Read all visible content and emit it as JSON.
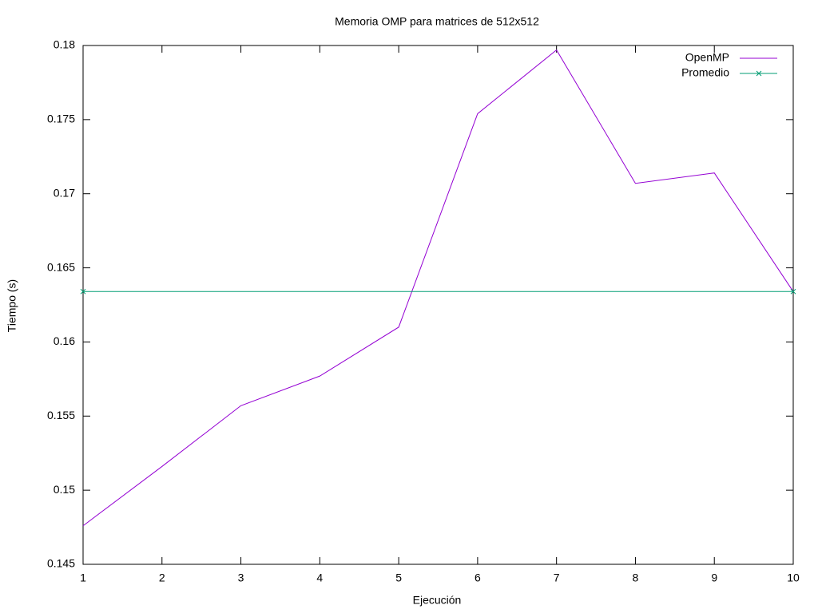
{
  "chart_data": {
    "type": "line",
    "title": "Memoria OMP para matrices de 512x512",
    "xlabel": "Ejecución",
    "ylabel": "Tiempo (s)",
    "xlim": [
      1,
      10
    ],
    "xticks": [
      1,
      2,
      3,
      4,
      5,
      6,
      7,
      8,
      9,
      10
    ],
    "ylim": [
      0.145,
      0.18
    ],
    "yticks": [
      0.145,
      0.15,
      0.155,
      0.16,
      0.165,
      0.17,
      0.175,
      0.18
    ],
    "legend": "top-right",
    "series": [
      {
        "name": "OpenMP",
        "color": "#9400d3",
        "marker": "none",
        "x": [
          1,
          2,
          3,
          4,
          5,
          6,
          7,
          8,
          9,
          10
        ],
        "values": [
          0.1476,
          0.1516,
          0.1557,
          0.1577,
          0.161,
          0.1754,
          0.1797,
          0.1707,
          0.1714,
          0.1634
        ]
      },
      {
        "name": "Promedio",
        "color": "#009e73",
        "marker": "x",
        "x": [
          1,
          10
        ],
        "values": [
          0.1634,
          0.1634
        ]
      }
    ]
  }
}
